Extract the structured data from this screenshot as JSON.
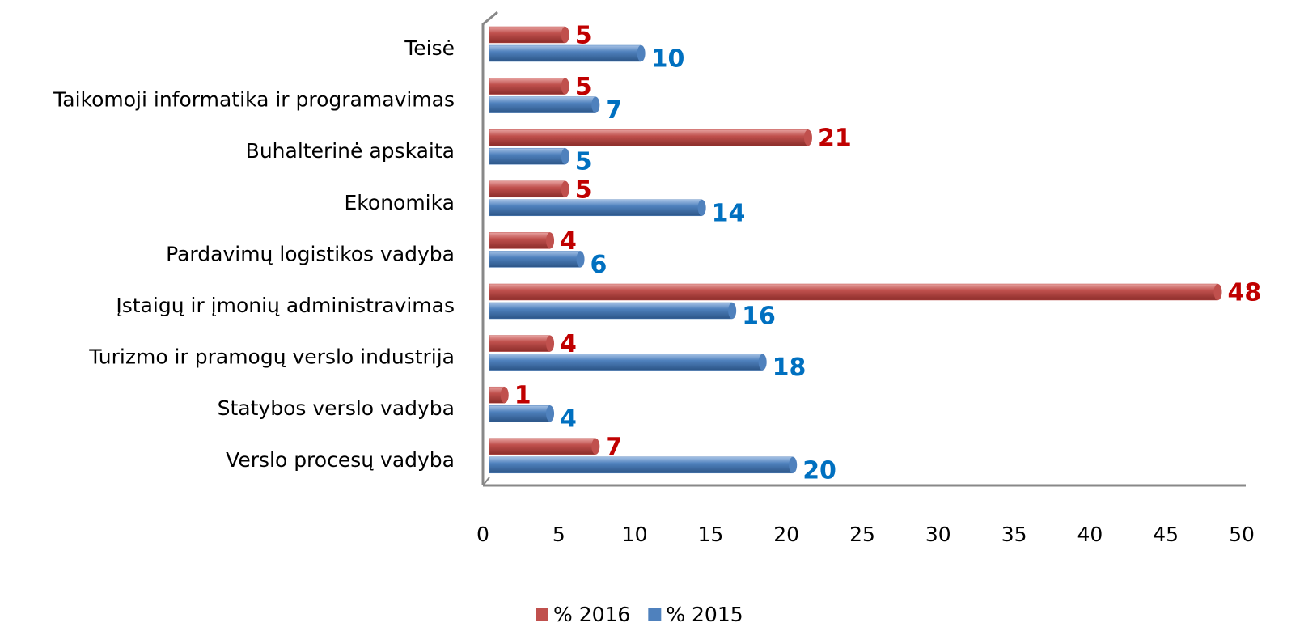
{
  "chart_data": {
    "type": "bar",
    "orientation": "horizontal",
    "categories": [
      "Teisė",
      "Taikomoji informatika ir programavimas",
      "Buhalterinė apskaita",
      "Ekonomika",
      "Pardavimų logistikos vadyba",
      "Įstaigų ir įmonių administravimas",
      "Turizmo ir pramogų verslo industrija",
      "Statybos verslo vadyba",
      "Verslo procesų vadyba"
    ],
    "series": [
      {
        "name": "% 2016",
        "color": "#c0504d",
        "label_color": "#c00000",
        "values": [
          5,
          5,
          21,
          5,
          4,
          48,
          4,
          1,
          7
        ]
      },
      {
        "name": "% 2015",
        "color": "#4f81bd",
        "label_color": "#0070c0",
        "values": [
          10,
          7,
          5,
          14,
          6,
          16,
          18,
          4,
          20
        ]
      }
    ],
    "xlim": [
      0,
      50
    ],
    "xticks": [
      0,
      5,
      10,
      15,
      20,
      25,
      30,
      35,
      40,
      45,
      50
    ],
    "legend": "bottom",
    "grid": false
  }
}
